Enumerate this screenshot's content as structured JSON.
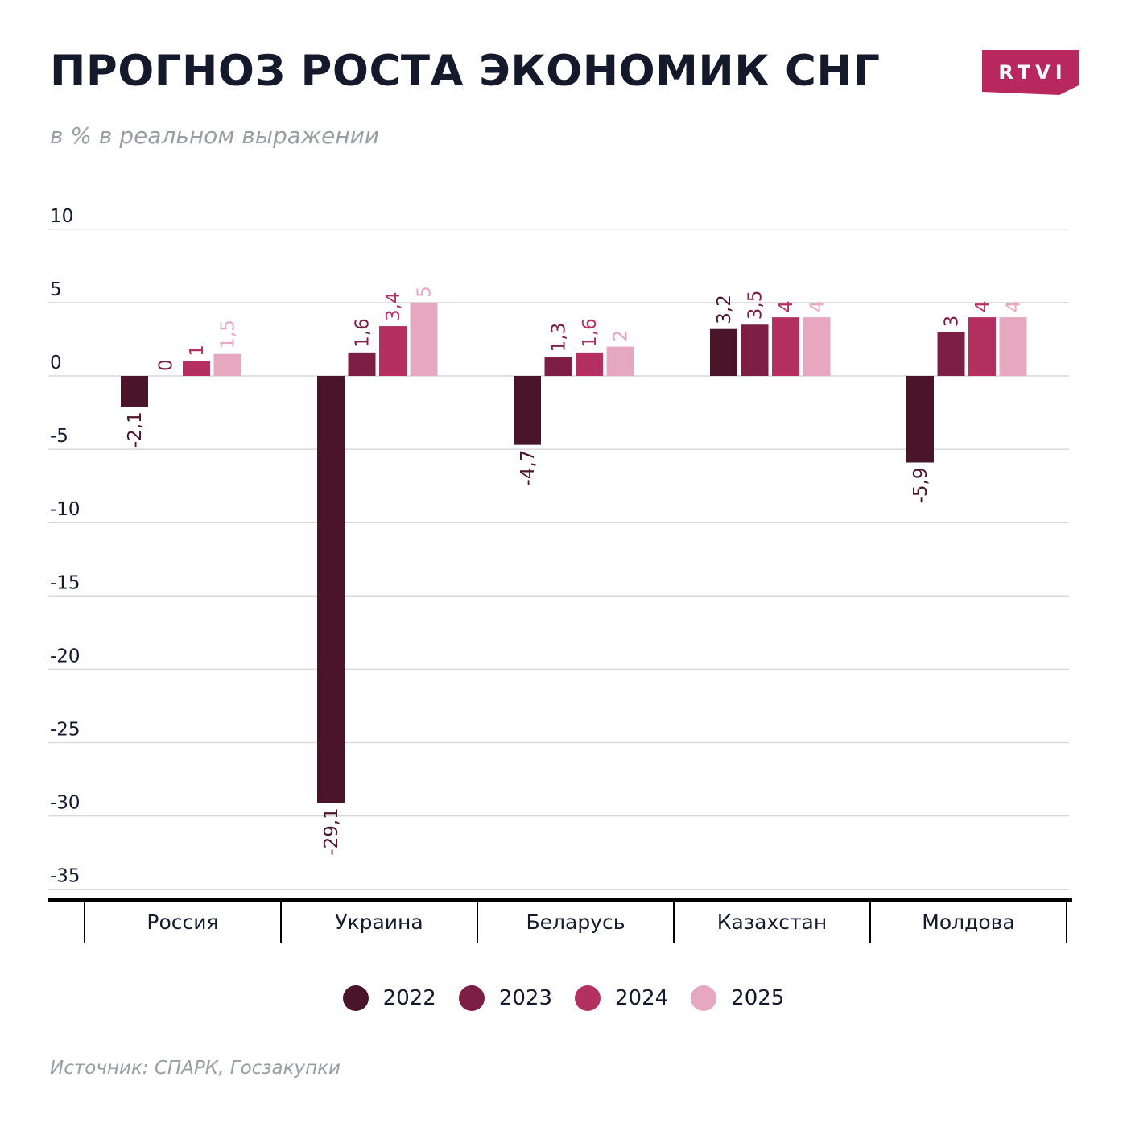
{
  "title": "ПРОГНОЗ РОСТА ЭКОНОМИК СНГ",
  "subtitle": "в % в реальном выражении",
  "logo": {
    "text": "RTVI",
    "color": "#b8285f"
  },
  "source": "Источник: СПАРК, Госзакупки",
  "colors": {
    "text": "#141a2b",
    "grid": "#d9d9d9",
    "axis": "#000000"
  },
  "chart_data": {
    "type": "bar",
    "title": "ПРОГНОЗ РОСТА ЭКОНОМИК СНГ",
    "ylabel": "в % в реальном выражении",
    "xlabel": "",
    "ylim": [
      -35,
      10
    ],
    "yticks": [
      10,
      5,
      0,
      -5,
      -10,
      -15,
      -20,
      -25,
      -30,
      -35
    ],
    "ytick_labels": [
      "10",
      "5",
      "0",
      "-5",
      "-10",
      "-15",
      "-20",
      "-25",
      "-30",
      "-35"
    ],
    "grid": true,
    "legend_position": "bottom-center",
    "categories": [
      "Россия",
      "Украина",
      "Беларусь",
      "Казахстан",
      "Молдова"
    ],
    "series": [
      {
        "name": "2022",
        "color": "#4a1528",
        "values": [
          -2.1,
          -29.1,
          -4.7,
          3.2,
          -5.9
        ],
        "labels": [
          "-2,1",
          "-29,1",
          "-4,7",
          "3,2",
          "-5,9"
        ]
      },
      {
        "name": "2023",
        "color": "#7d1f45",
        "values": [
          0,
          1.6,
          1.3,
          3.5,
          3
        ],
        "labels": [
          "0",
          "1,6",
          "1,3",
          "3,5",
          "3"
        ]
      },
      {
        "name": "2024",
        "color": "#b3305f",
        "values": [
          1,
          3.4,
          1.6,
          4,
          4
        ],
        "labels": [
          "1",
          "3,4",
          "1,6",
          "4",
          "4"
        ]
      },
      {
        "name": "2025",
        "color": "#e6a8bf",
        "values": [
          1.5,
          5,
          2,
          4,
          4
        ],
        "labels": [
          "1,5",
          "5",
          "2",
          "4",
          "4"
        ]
      }
    ]
  }
}
